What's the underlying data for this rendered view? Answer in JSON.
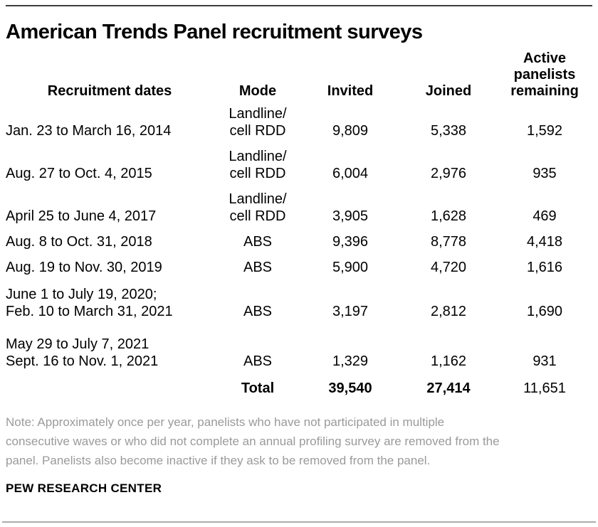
{
  "title": "American Trends Panel recruitment surveys",
  "table": {
    "headers": [
      "Recruitment dates",
      "Mode",
      "Invited",
      "Joined",
      "Active\npanelists\nremaining"
    ],
    "rows": [
      {
        "dates": "Jan. 23 to March 16, 2014",
        "mode": "Landline/\ncell RDD",
        "invited": "9,809",
        "joined": "5,338",
        "active": "1,592"
      },
      {
        "dates": "Aug. 27 to Oct. 4, 2015",
        "mode": "Landline/\ncell RDD",
        "invited": "6,004",
        "joined": "2,976",
        "active": "935"
      },
      {
        "dates": "April 25 to June 4, 2017",
        "mode": "Landline/\ncell RDD",
        "invited": "3,905",
        "joined": "1,628",
        "active": "469"
      },
      {
        "dates": "Aug. 8 to Oct. 31, 2018",
        "mode": "ABS",
        "invited": "9,396",
        "joined": "8,778",
        "active": "4,418"
      },
      {
        "dates": "Aug. 19 to Nov. 30, 2019",
        "mode": "ABS",
        "invited": "5,900",
        "joined": "4,720",
        "active": "1,616"
      },
      {
        "dates": "June 1 to July 19, 2020;\nFeb. 10 to March 31, 2021",
        "mode": "ABS",
        "invited": "3,197",
        "joined": "2,812",
        "active": "1,690"
      },
      {
        "dates": "May 29 to July 7, 2021\nSept. 16 to Nov. 1, 2021",
        "mode": "ABS",
        "invited": "1,329",
        "joined": "1,162",
        "active": "931"
      }
    ],
    "total": {
      "label": "Total",
      "invited": "39,540",
      "joined": "27,414",
      "active": "11,651"
    }
  },
  "note": "Note: Approximately once per year, panelists who have not participated in multiple\nconsecutive waves or who did not complete an annual profiling survey are removed from the\npanel. Panelists also become inactive if they ask to be removed from the panel.",
  "footer": "PEW RESEARCH CENTER",
  "colors": {
    "text": "#000000",
    "note_gray": "#9a9a9a",
    "top_rule": "#3d3d3d",
    "bottom_rule": "#ababab"
  },
  "chart_data": {
    "type": "table",
    "title": "American Trends Panel recruitment surveys",
    "columns": [
      "Recruitment dates",
      "Mode",
      "Invited",
      "Joined",
      "Active panelists remaining"
    ],
    "rows": [
      [
        "Jan. 23 to March 16, 2014",
        "Landline/cell RDD",
        9809,
        5338,
        1592
      ],
      [
        "Aug. 27 to Oct. 4, 2015",
        "Landline/cell RDD",
        6004,
        2976,
        935
      ],
      [
        "April 25 to June 4, 2017",
        "Landline/cell RDD",
        3905,
        1628,
        469
      ],
      [
        "Aug. 8 to Oct. 31, 2018",
        "ABS",
        9396,
        8778,
        4418
      ],
      [
        "Aug. 19 to Nov. 30, 2019",
        "ABS",
        5900,
        4720,
        1616
      ],
      [
        "June 1 to July 19, 2020; Feb. 10 to March 31, 2021",
        "ABS",
        3197,
        2812,
        1690
      ],
      [
        "May 29 to July 7, 2021 / Sept. 16 to Nov. 1, 2021",
        "ABS",
        1329,
        1162,
        931
      ]
    ],
    "totals": {
      "invited": 39540,
      "joined": 27414,
      "active_panelists_remaining": 11651
    },
    "source_label": "PEW RESEARCH CENTER"
  }
}
